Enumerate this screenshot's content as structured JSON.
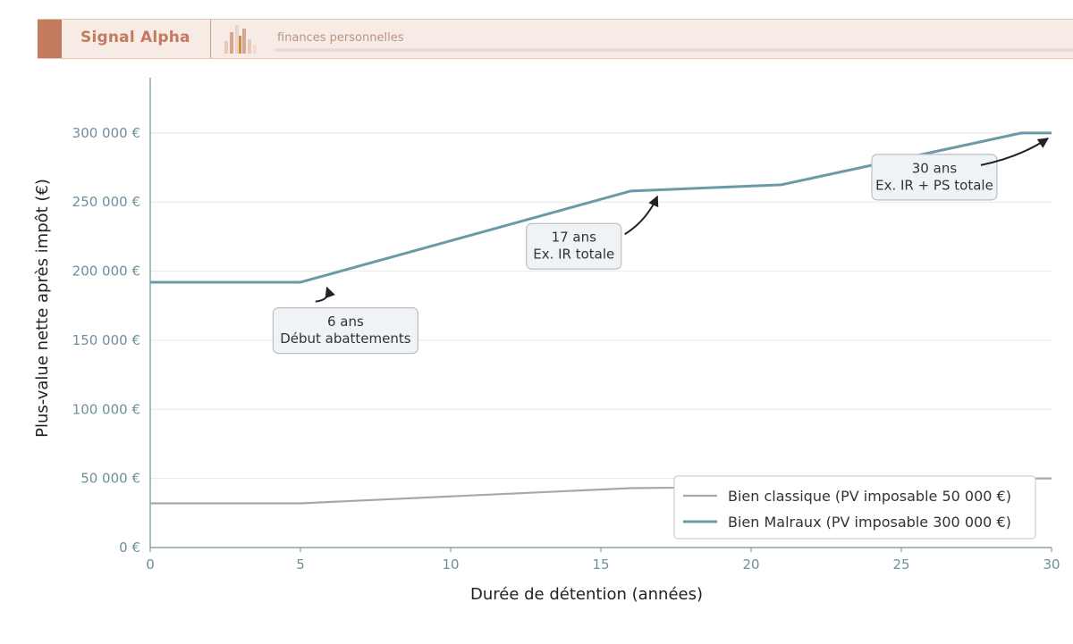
{
  "header": {
    "brand": "Signal Alpha",
    "tagline": "finances personnelles",
    "logo_icon": "bar-chart-logo-icon"
  },
  "colors": {
    "brand": "#c47a5e",
    "malraux": "#6a9aa7",
    "classique": "#a8a8a8",
    "axis": "#6f8f9c"
  },
  "chart_data": {
    "type": "line",
    "title": "",
    "xlabel": "Durée de détention (années)",
    "ylabel": "Plus-value nette après impôt (€)",
    "xlim": [
      0,
      30
    ],
    "ylim": [
      0,
      340000
    ],
    "x_ticks": [
      0,
      5,
      10,
      15,
      20,
      25,
      30
    ],
    "y_ticks": [
      0,
      50000,
      100000,
      150000,
      200000,
      250000,
      300000
    ],
    "y_tick_labels": [
      "0 €",
      "50 000 €",
      "100 000 €",
      "150 000 €",
      "200 000 €",
      "250 000 €",
      "300 000 €"
    ],
    "grid": "horizontal",
    "legend_position": "bottom-right",
    "series": [
      {
        "name": "Bien classique (PV imposable 50 000 €)",
        "color": "#a8a8a8",
        "x": [
          0,
          5,
          16,
          21,
          29,
          30
        ],
        "y": [
          32000,
          32000,
          43000,
          44000,
          50000,
          50000
        ]
      },
      {
        "name": "Bien Malraux (PV imposable 300 000 €)",
        "color": "#6a9aa7",
        "x": [
          0,
          5,
          16,
          21,
          29,
          30
        ],
        "y": [
          192000,
          192000,
          258000,
          262500,
          300000,
          300000
        ]
      }
    ],
    "annotations": [
      {
        "lines": [
          "6 ans",
          "Début abattements"
        ],
        "target_x": 6,
        "target_y": 192000,
        "box_x": 6.5,
        "box_y": 157000
      },
      {
        "lines": [
          "17 ans",
          "Ex. IR totale"
        ],
        "target_x": 17,
        "target_y": 258000,
        "box_x": 14.1,
        "box_y": 218000
      },
      {
        "lines": [
          "30 ans",
          "Ex. IR + PS totale"
        ],
        "target_x": 30,
        "target_y": 300000,
        "box_x": 26.1,
        "box_y": 268000
      }
    ]
  }
}
